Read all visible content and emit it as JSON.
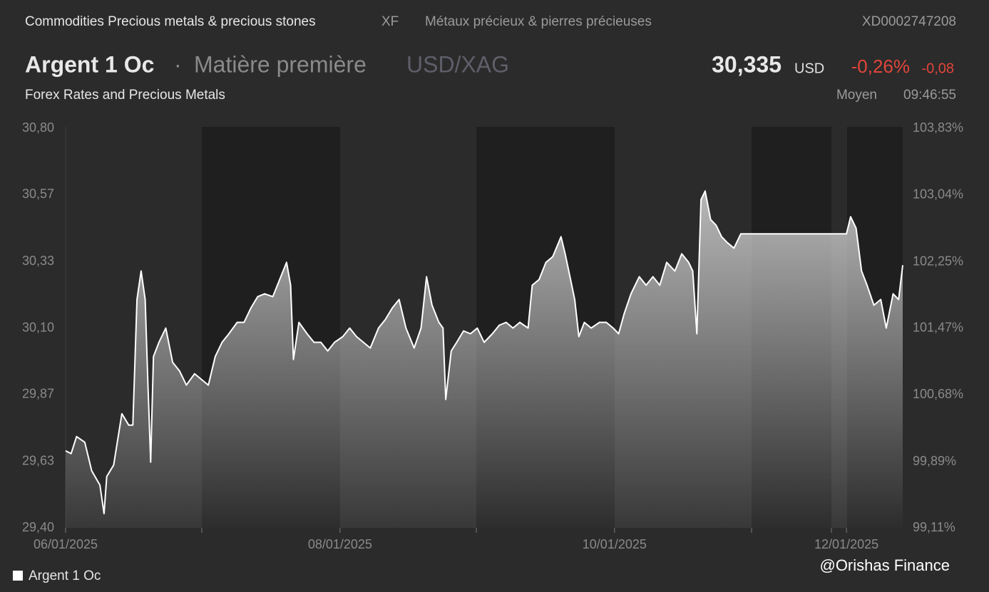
{
  "header": {
    "breadcrumb": "Commodities Precious metals & precious stones",
    "exchange": "XF",
    "category_fr": "Métaux précieux & pierres précieuses",
    "isin": "XD0002747208",
    "name": "Argent 1 Oc",
    "separator": "·",
    "kind": "Matière première",
    "pair": "USD/XAG",
    "price": "30,335",
    "currency": "USD",
    "change_pct": "-0,26%",
    "change_abs": "-0,08",
    "source": "Forex Rates and Precious Metals",
    "price_type": "Moyen",
    "time": "09:46:55"
  },
  "watermark": "@Orishas Finance",
  "chart_data": {
    "type": "area",
    "x": [
      0,
      0.04,
      0.08,
      0.14,
      0.19,
      0.25,
      0.28,
      0.3,
      0.35,
      0.41,
      0.46,
      0.49,
      0.52,
      0.55,
      0.58,
      0.6,
      0.62,
      0.64,
      0.68,
      0.73,
      0.78,
      0.83,
      0.88,
      0.94,
      0.99,
      1.04,
      1.09,
      1.14,
      1.19,
      1.25,
      1.3,
      1.35,
      1.4,
      1.45,
      1.51,
      1.56,
      1.61,
      1.64,
      1.66,
      1.7,
      1.76,
      1.81,
      1.86,
      1.91,
      1.96,
      2.02,
      2.07,
      2.12,
      2.17,
      2.22,
      2.28,
      2.33,
      2.38,
      2.43,
      2.48,
      2.54,
      2.59,
      2.63,
      2.67,
      2.72,
      2.75,
      2.77,
      2.81,
      2.85,
      2.9,
      2.95,
      3.0,
      3.05,
      3.11,
      3.16,
      3.21,
      3.26,
      3.31,
      3.37,
      3.4,
      3.45,
      3.5,
      3.55,
      3.61,
      3.64,
      3.68,
      3.71,
      3.74,
      3.78,
      3.83,
      3.89,
      3.94,
      3.99,
      4.03,
      4.07,
      4.12,
      4.18,
      4.23,
      4.28,
      4.33,
      4.38,
      4.44,
      4.49,
      4.54,
      4.57,
      4.6,
      4.63,
      4.66,
      4.7,
      4.74,
      4.78,
      4.82,
      4.87,
      4.92,
      4.98,
      5.24,
      5.5,
      5.69,
      5.72,
      5.76,
      5.8,
      5.84,
      5.89,
      5.94,
      5.98,
      6.03,
      6.07,
      6.1
    ],
    "series": [
      {
        "name": "Argent 1 Oc",
        "color": "#ffffff",
        "values": [
          29.67,
          29.66,
          29.72,
          29.7,
          29.6,
          29.55,
          29.45,
          29.58,
          29.62,
          29.8,
          29.76,
          29.76,
          30.2,
          30.3,
          30.2,
          29.9,
          29.63,
          30.0,
          30.05,
          30.1,
          29.98,
          29.95,
          29.9,
          29.94,
          29.92,
          29.9,
          30.0,
          30.05,
          30.08,
          30.12,
          30.12,
          30.17,
          30.21,
          30.22,
          30.21,
          30.27,
          30.33,
          30.25,
          29.99,
          30.12,
          30.08,
          30.05,
          30.05,
          30.02,
          30.05,
          30.07,
          30.1,
          30.07,
          30.05,
          30.03,
          30.1,
          30.13,
          30.17,
          30.2,
          30.1,
          30.03,
          30.1,
          30.28,
          30.18,
          30.12,
          30.1,
          29.85,
          30.02,
          30.05,
          30.09,
          30.08,
          30.1,
          30.05,
          30.08,
          30.11,
          30.12,
          30.1,
          30.12,
          30.1,
          30.25,
          30.27,
          30.33,
          30.35,
          30.42,
          30.36,
          30.27,
          30.2,
          30.07,
          30.12,
          30.1,
          30.12,
          30.12,
          30.1,
          30.08,
          30.15,
          30.22,
          30.28,
          30.25,
          30.28,
          30.25,
          30.33,
          30.3,
          30.36,
          30.33,
          30.3,
          30.08,
          30.55,
          30.58,
          30.48,
          30.46,
          30.42,
          30.4,
          30.38,
          30.43,
          30.43,
          30.43,
          30.43,
          30.43,
          30.49,
          30.45,
          30.3,
          30.25,
          30.18,
          30.2,
          30.1,
          30.22,
          30.2,
          30.32
        ]
      }
    ],
    "xlim": [
      0,
      6.1
    ],
    "xticks": [
      {
        "value": 0,
        "label": "06/01/2025"
      },
      {
        "value": 2,
        "label": "08/01/2025"
      },
      {
        "value": 4,
        "label": "10/01/2025"
      },
      {
        "value": 5.69,
        "label": "12/01/2025"
      }
    ],
    "ylim": [
      29.4,
      30.8
    ],
    "yticks": [
      {
        "value": 29.4,
        "label": "29,40"
      },
      {
        "value": 29.6333,
        "label": "29,63"
      },
      {
        "value": 29.8667,
        "label": "29,87"
      },
      {
        "value": 30.1,
        "label": "30,10"
      },
      {
        "value": 30.3333,
        "label": "30,33"
      },
      {
        "value": 30.5667,
        "label": "30,57"
      },
      {
        "value": 30.8,
        "label": "30,80"
      }
    ],
    "y2lim": [
      99.11,
      103.83
    ],
    "y2ticks": [
      {
        "value": 99.11,
        "label": "99,11%"
      },
      {
        "value": 99.89,
        "label": "99,89%"
      },
      {
        "value": 100.68,
        "label": "100,68%"
      },
      {
        "value": 101.47,
        "label": "101,47%"
      },
      {
        "value": 102.25,
        "label": "102,25%"
      },
      {
        "value": 103.04,
        "label": "103,04%"
      },
      {
        "value": 103.83,
        "label": "103,83%"
      }
    ],
    "legend": "bottom-left"
  }
}
